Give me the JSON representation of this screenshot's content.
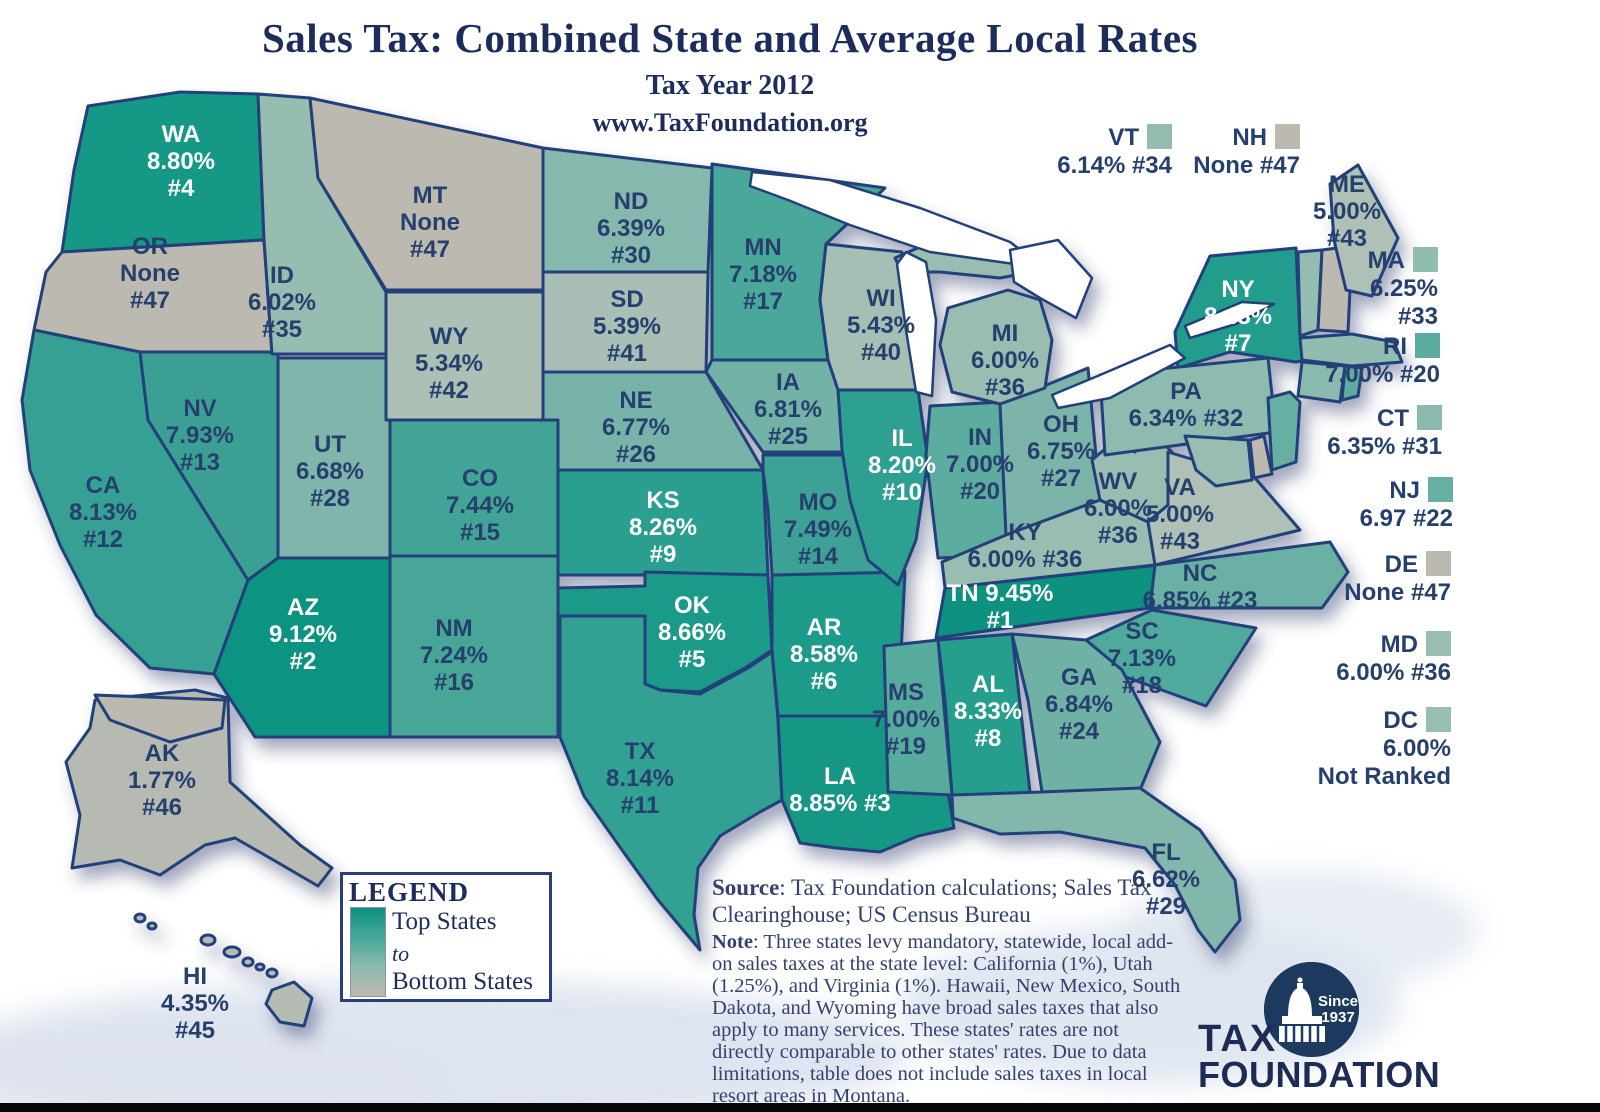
{
  "title": "Sales Tax: Combined State and Average Local Rates",
  "subtitle": "Tax Year 2012",
  "website": "www.TaxFoundation.org",
  "legend": {
    "title": "LEGEND",
    "top": "Top States",
    "middle": "to",
    "bottom": "Bottom States"
  },
  "source_note": {
    "source_label": "Source",
    "source_text": ": Tax Foundation calculations; Sales Tax Clearinghouse; US Census Bureau",
    "note_label": "Note",
    "note_text": ": Three states levy mandatory, statewide, local add-on sales taxes at the state level: California (1%), Utah (1.25%), and Virginia (1%).  Hawaii, New Mexico, South Dakota, and Wyoming have broad sales taxes that also apply to many services. These states' rates are not directly comparable to other states' rates. Due to data limitations, table does not include sales taxes in local resort areas in Montana."
  },
  "logo": {
    "line1": "TAX",
    "line2": "FOUNDATION",
    "badge_line1": "Since",
    "badge_line2": "1937"
  },
  "colors": {
    "border": "#23407a",
    "text": "#26406d",
    "text_light": "#ffffff",
    "title": "#1c2c5c",
    "lake": "#ffffff",
    "ocean_wash": "#d9e1ed",
    "background": "#ffffff",
    "logo_navy": "#1d3a5e",
    "bottom_bar": "#060606",
    "ramp": [
      {
        "rank": 1,
        "color": "#0d9180"
      },
      {
        "rank": 5,
        "color": "#1c9a89"
      },
      {
        "rank": 10,
        "color": "#2da092"
      },
      {
        "rank": 13,
        "color": "#3aa093"
      },
      {
        "rank": 17,
        "color": "#4aa89a"
      },
      {
        "rank": 20,
        "color": "#5cac9f"
      },
      {
        "rank": 24,
        "color": "#6fb1a5"
      },
      {
        "rank": 28,
        "color": "#7fb5aa"
      },
      {
        "rank": 32,
        "color": "#8ebbaf"
      },
      {
        "rank": 36,
        "color": "#9abdb2"
      },
      {
        "rank": 40,
        "color": "#a6bfb5"
      },
      {
        "rank": 43,
        "color": "#afc0b7"
      },
      {
        "rank": 46,
        "color": "#b7bab2"
      },
      {
        "rank": 47,
        "color": "#bcb9b0"
      }
    ]
  },
  "states": [
    {
      "code": "WA",
      "rate": "8.80%",
      "rank": "#4",
      "color_rank": 4,
      "lines": [
        "WA",
        "8.80%",
        "#4"
      ]
    },
    {
      "code": "OR",
      "rate": "None",
      "rank": "#47",
      "color_rank": 47,
      "lines": [
        "OR",
        "None",
        "#47"
      ]
    },
    {
      "code": "CA",
      "rate": "8.13%",
      "rank": "#12",
      "color_rank": 12,
      "lines": [
        "CA",
        "8.13%",
        "#12"
      ]
    },
    {
      "code": "NV",
      "rate": "7.93%",
      "rank": "#13",
      "color_rank": 13,
      "lines": [
        "NV",
        "7.93%",
        "#13"
      ]
    },
    {
      "code": "ID",
      "rate": "6.02%",
      "rank": "#35",
      "color_rank": 35,
      "lines": [
        "ID",
        "6.02%",
        "#35"
      ]
    },
    {
      "code": "MT",
      "rate": "None",
      "rank": "#47",
      "color_rank": 47,
      "lines": [
        "MT",
        "None",
        "#47"
      ]
    },
    {
      "code": "WY",
      "rate": "5.34%",
      "rank": "#42",
      "color_rank": 42,
      "lines": [
        "WY",
        "5.34%",
        "#42"
      ]
    },
    {
      "code": "UT",
      "rate": "6.68%",
      "rank": "#28",
      "color_rank": 28,
      "lines": [
        "UT",
        "6.68%",
        "#28"
      ]
    },
    {
      "code": "CO",
      "rate": "7.44%",
      "rank": "#15",
      "color_rank": 15,
      "lines": [
        "CO",
        "7.44%",
        "#15"
      ]
    },
    {
      "code": "AZ",
      "rate": "9.12%",
      "rank": "#2",
      "color_rank": 2,
      "lines": [
        "AZ",
        "9.12%",
        "#2"
      ]
    },
    {
      "code": "NM",
      "rate": "7.24%",
      "rank": "#16",
      "color_rank": 16,
      "lines": [
        "NM",
        "7.24%",
        "#16"
      ]
    },
    {
      "code": "ND",
      "rate": "6.39%",
      "rank": "#30",
      "color_rank": 30,
      "lines": [
        "ND",
        "6.39%",
        "#30"
      ]
    },
    {
      "code": "SD",
      "rate": "5.39%",
      "rank": "#41",
      "color_rank": 41,
      "lines": [
        "SD",
        "5.39%",
        "#41"
      ]
    },
    {
      "code": "NE",
      "rate": "6.77%",
      "rank": "#26",
      "color_rank": 26,
      "lines": [
        "NE",
        "6.77%",
        "#26"
      ]
    },
    {
      "code": "KS",
      "rate": "8.26%",
      "rank": "#9",
      "color_rank": 9,
      "lines": [
        "KS",
        "8.26%",
        "#9"
      ]
    },
    {
      "code": "OK",
      "rate": "8.66%",
      "rank": "#5",
      "color_rank": 5,
      "lines": [
        "OK",
        "8.66%",
        "#5"
      ]
    },
    {
      "code": "TX",
      "rate": "8.14%",
      "rank": "#11",
      "color_rank": 11,
      "lines": [
        "TX",
        "8.14%",
        "#11"
      ]
    },
    {
      "code": "MN",
      "rate": "7.18%",
      "rank": "#17",
      "color_rank": 17,
      "lines": [
        "MN",
        "7.18%",
        "#17"
      ]
    },
    {
      "code": "IA",
      "rate": "6.81%",
      "rank": "#25",
      "color_rank": 25,
      "lines": [
        "IA",
        "6.81%",
        "#25"
      ]
    },
    {
      "code": "MO",
      "rate": "7.49%",
      "rank": "#14",
      "color_rank": 14,
      "lines": [
        "MO",
        "7.49%",
        "#14"
      ]
    },
    {
      "code": "AR",
      "rate": "8.58%",
      "rank": "#6",
      "color_rank": 6,
      "lines": [
        "AR",
        "8.58%",
        "#6"
      ]
    },
    {
      "code": "LA",
      "rate": "8.85%",
      "rank": "#3",
      "color_rank": 3,
      "lines": [
        "LA",
        "8.85% #3"
      ]
    },
    {
      "code": "WI",
      "rate": "5.43%",
      "rank": "#40",
      "color_rank": 40,
      "lines": [
        "WI",
        "5.43%",
        "#40"
      ]
    },
    {
      "code": "IL",
      "rate": "8.20%",
      "rank": "#10",
      "color_rank": 10,
      "lines": [
        "IL",
        "8.20%",
        "#10"
      ]
    },
    {
      "code": "IN",
      "rate": "7.00%",
      "rank": "#20",
      "color_rank": 20,
      "lines": [
        "IN",
        "7.00%",
        "#20"
      ]
    },
    {
      "code": "OH",
      "rate": "6.75%",
      "rank": "#27",
      "color_rank": 27,
      "lines": [
        "OH",
        "6.75%",
        "#27"
      ]
    },
    {
      "code": "MI",
      "rate": "6.00%",
      "rank": "#36",
      "color_rank": 36,
      "lines": [
        "MI",
        "6.00%",
        "#36"
      ]
    },
    {
      "code": "KY",
      "rate": "6.00%",
      "rank": "#36",
      "color_rank": 36,
      "lines": [
        "KY",
        "6.00% #36"
      ]
    },
    {
      "code": "TN",
      "rate": "9.45%",
      "rank": "#1",
      "color_rank": 1,
      "lines": [
        "TN 9.45%",
        "#1"
      ]
    },
    {
      "code": "WV",
      "rate": "6.00%",
      "rank": "#36",
      "color_rank": 36,
      "lines": [
        "WV",
        "6.00%",
        "#36"
      ]
    },
    {
      "code": "VA",
      "rate": "5.00%",
      "rank": "#43",
      "color_rank": 43,
      "lines": [
        "VA",
        "5.00%",
        "#43"
      ]
    },
    {
      "code": "NC",
      "rate": "6.85%",
      "rank": "#23",
      "color_rank": 23,
      "lines": [
        "NC",
        "6.85% #23"
      ]
    },
    {
      "code": "SC",
      "rate": "7.13%",
      "rank": "#18",
      "color_rank": 18,
      "lines": [
        "SC",
        "7.13%",
        "#18"
      ]
    },
    {
      "code": "GA",
      "rate": "6.84%",
      "rank": "#24",
      "color_rank": 24,
      "lines": [
        "GA",
        "6.84%",
        "#24"
      ]
    },
    {
      "code": "AL",
      "rate": "8.33%",
      "rank": "#8",
      "color_rank": 8,
      "lines": [
        "AL",
        "8.33%",
        "#8"
      ]
    },
    {
      "code": "MS",
      "rate": "7.00%",
      "rank": "#19",
      "color_rank": 19,
      "lines": [
        "MS",
        "7.00%",
        "#19"
      ]
    },
    {
      "code": "FL",
      "rate": "6.62%",
      "rank": "#29",
      "color_rank": 29,
      "lines": [
        "FL",
        "6.62%",
        "#29"
      ]
    },
    {
      "code": "AK",
      "rate": "1.77%",
      "rank": "#46",
      "color_rank": 46,
      "lines": [
        "AK",
        "1.77%",
        "#46"
      ]
    },
    {
      "code": "HI",
      "rate": "4.35%",
      "rank": "#45",
      "color_rank": 45,
      "lines": [
        "HI",
        "4.35%",
        "#45"
      ]
    },
    {
      "code": "ME",
      "rate": "5.00%",
      "rank": "#43",
      "color_rank": 43,
      "lines": [
        "ME",
        "5.00%",
        "#43"
      ]
    },
    {
      "code": "NY",
      "rate": "8.48%",
      "rank": "#7",
      "color_rank": 7,
      "lines": [
        "NY",
        "8.48%",
        "#7"
      ]
    },
    {
      "code": "PA",
      "rate": "6.34%",
      "rank": "#32",
      "color_rank": 32,
      "lines": [
        "PA",
        "6.34% #32"
      ]
    }
  ],
  "callouts": [
    {
      "code": "VT",
      "rate": "6.14%",
      "rank": "#34",
      "color_rank": 34,
      "lines": [
        "6.14% #34"
      ]
    },
    {
      "code": "NH",
      "rate": "None",
      "rank": "#47",
      "color_rank": 47,
      "lines": [
        "None #47"
      ]
    },
    {
      "code": "MA",
      "rate": "6.25%",
      "rank": "#33",
      "color_rank": 33,
      "lines": [
        "6.25%",
        "#33"
      ]
    },
    {
      "code": "RI",
      "rate": "7.00%",
      "rank": "#20",
      "color_rank": 20,
      "lines": [
        "7.00% #20"
      ]
    },
    {
      "code": "CT",
      "rate": "6.35%",
      "rank": "#31",
      "color_rank": 31,
      "lines": [
        "6.35% #31"
      ]
    },
    {
      "code": "NJ",
      "rate": "6.97",
      "rank": "#22",
      "color_rank": 22,
      "lines": [
        "6.97 #22"
      ]
    },
    {
      "code": "DE",
      "rate": "None",
      "rank": "#47",
      "color_rank": 47,
      "lines": [
        "None #47"
      ]
    },
    {
      "code": "MD",
      "rate": "6.00%",
      "rank": "#36",
      "color_rank": 36,
      "lines": [
        "6.00% #36"
      ]
    },
    {
      "code": "DC",
      "rate": "6.00%",
      "rank": "Not Ranked",
      "color_rank": 36,
      "lines": [
        "6.00%",
        "Not Ranked"
      ]
    }
  ]
}
